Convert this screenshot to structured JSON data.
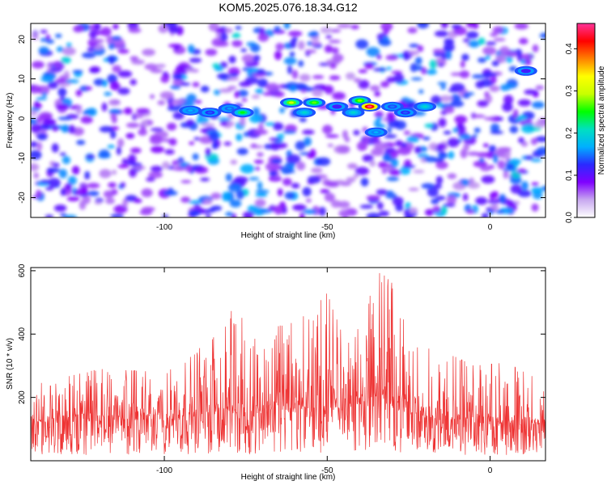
{
  "chart_data": [
    {
      "type": "heatmap",
      "title": "KOM5.2025.076.18.34.G12",
      "xlabel": "Height of straight line (km)",
      "ylabel": "Frequency (Hz)",
      "xlim": [
        -141,
        17
      ],
      "ylim": [
        -25,
        24
      ],
      "xticks": [
        "-100",
        "-50",
        "0"
      ],
      "yticks": [
        "20",
        "10",
        "0",
        "-10",
        "-20"
      ],
      "colorbar": {
        "label": "Normalized spectral amplitude",
        "range": [
          0.0,
          0.46
        ],
        "ticks": [
          "0.0",
          "0.1",
          "0.2",
          "0.3",
          "0.4"
        ],
        "colormap": [
          "#ffffff",
          "#c8a8f0",
          "#7f00ff",
          "#2a2aff",
          "#00b0ff",
          "#00e0c0",
          "#00ff00",
          "#c8ff00",
          "#ffff00",
          "#ff8000",
          "#ff0000",
          "#ff3399"
        ]
      },
      "hot_spots": [
        {
          "x": -92,
          "y": 2,
          "amp": 0.17
        },
        {
          "x": -86,
          "y": 1.5,
          "amp": 0.14
        },
        {
          "x": -80,
          "y": 2.5,
          "amp": 0.16
        },
        {
          "x": -76,
          "y": 1.5,
          "amp": 0.25
        },
        {
          "x": -61,
          "y": 4,
          "amp": 0.3
        },
        {
          "x": -57,
          "y": 1.5,
          "amp": 0.2
        },
        {
          "x": -54,
          "y": 4,
          "amp": 0.27
        },
        {
          "x": -47,
          "y": 3,
          "amp": 0.12
        },
        {
          "x": -40,
          "y": 4.5,
          "amp": 0.28
        },
        {
          "x": -37,
          "y": 3,
          "amp": 0.46
        },
        {
          "x": -42,
          "y": 1.5,
          "amp": 0.2
        },
        {
          "x": -35,
          "y": -3.5,
          "amp": 0.17
        },
        {
          "x": -30,
          "y": 3,
          "amp": 0.15
        },
        {
          "x": -26,
          "y": 1.5,
          "amp": 0.14
        },
        {
          "x": -20,
          "y": 3,
          "amp": 0.2
        },
        {
          "x": 11,
          "y": 12,
          "amp": 0.12
        }
      ]
    },
    {
      "type": "line",
      "xlabel": "Height of straight line (km)",
      "ylabel": "SNR (10 * v/v)",
      "xlim": [
        -141,
        17
      ],
      "ylim": [
        0,
        610
      ],
      "xticks": [
        "-100",
        "-50",
        "0"
      ],
      "yticks": [
        "600",
        "400",
        "200"
      ],
      "color": "#ee3333",
      "envelope": [
        {
          "x": -140,
          "peak": 240,
          "base": 120
        },
        {
          "x": -120,
          "peak": 290,
          "base": 125
        },
        {
          "x": -100,
          "peak": 280,
          "base": 130
        },
        {
          "x": -90,
          "peak": 340,
          "base": 140
        },
        {
          "x": -82,
          "peak": 490,
          "base": 150
        },
        {
          "x": -70,
          "peak": 410,
          "base": 150
        },
        {
          "x": -60,
          "peak": 440,
          "base": 165
        },
        {
          "x": -55,
          "peak": 470,
          "base": 165
        },
        {
          "x": -50,
          "peak": 530,
          "base": 170
        },
        {
          "x": -44,
          "peak": 360,
          "base": 165
        },
        {
          "x": -38,
          "peak": 490,
          "base": 190
        },
        {
          "x": -34,
          "peak": 600,
          "base": 210
        },
        {
          "x": -30,
          "peak": 560,
          "base": 190
        },
        {
          "x": -24,
          "peak": 360,
          "base": 150
        },
        {
          "x": -15,
          "peak": 350,
          "base": 130
        },
        {
          "x": -5,
          "peak": 300,
          "base": 120
        },
        {
          "x": 5,
          "peak": 310,
          "base": 115
        },
        {
          "x": 16,
          "peak": 250,
          "base": 110
        }
      ]
    }
  ]
}
